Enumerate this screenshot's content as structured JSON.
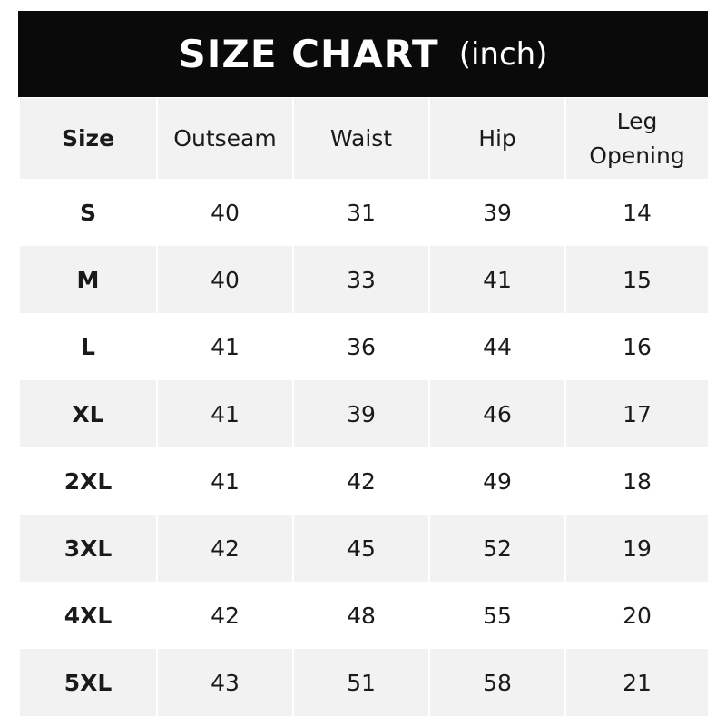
{
  "title": {
    "main": "SIZE CHART",
    "unit": "(inch)"
  },
  "colors": {
    "title_bg": "#0a0a0a",
    "stripe": "#f2f2f2",
    "text": "#1a1a1a"
  },
  "chart_data": {
    "type": "table",
    "title": "SIZE CHART (inch)",
    "columns": [
      "Size",
      "Outseam",
      "Waist",
      "Hip",
      "Leg Opening"
    ],
    "rows": [
      [
        "S",
        "40",
        "31",
        "39",
        "14"
      ],
      [
        "M",
        "40",
        "33",
        "41",
        "15"
      ],
      [
        "L",
        "41",
        "36",
        "44",
        "16"
      ],
      [
        "XL",
        "41",
        "39",
        "46",
        "17"
      ],
      [
        "2XL",
        "41",
        "42",
        "49",
        "18"
      ],
      [
        "3XL",
        "42",
        "45",
        "52",
        "19"
      ],
      [
        "4XL",
        "42",
        "48",
        "55",
        "20"
      ],
      [
        "5XL",
        "43",
        "51",
        "58",
        "21"
      ]
    ]
  }
}
